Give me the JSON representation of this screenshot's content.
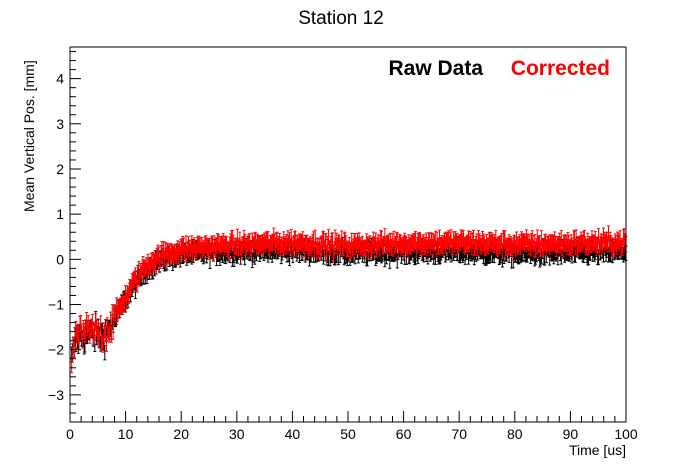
{
  "chart_data": {
    "type": "scatter",
    "title": "Station 12",
    "xlabel": "Time [us]",
    "ylabel": "Mean Vertical Pos. [mm]",
    "xlim": [
      0,
      100
    ],
    "ylim": [
      -3.6,
      4.7
    ],
    "x_ticks": [
      0,
      10,
      20,
      30,
      40,
      50,
      60,
      70,
      80,
      90,
      100
    ],
    "y_ticks": [
      -3,
      -2,
      -1,
      0,
      1,
      2,
      3,
      4
    ],
    "grid": false,
    "legend_placement": "top-right",
    "error_bars": true,
    "point_spacing_us": 0.149,
    "series": [
      {
        "name": "Raw Data",
        "color": "#000000",
        "error": 0.16,
        "trend": [
          [
            0,
            -2.5
          ],
          [
            0.5,
            -2.1
          ],
          [
            1,
            -1.8
          ],
          [
            2,
            -1.7
          ],
          [
            4,
            -1.65
          ],
          [
            6,
            -1.7
          ],
          [
            7,
            -1.55
          ],
          [
            8,
            -1.35
          ],
          [
            9,
            -1.1
          ],
          [
            10,
            -0.9
          ],
          [
            11,
            -0.7
          ],
          [
            12,
            -0.5
          ],
          [
            13,
            -0.35
          ],
          [
            14,
            -0.2
          ],
          [
            16,
            -0.05
          ],
          [
            18,
            0.05
          ],
          [
            20,
            0.1
          ],
          [
            25,
            0.15
          ],
          [
            30,
            0.17
          ],
          [
            40,
            0.2
          ],
          [
            50,
            0.13
          ],
          [
            60,
            0.16
          ],
          [
            70,
            0.17
          ],
          [
            80,
            0.12
          ],
          [
            90,
            0.14
          ],
          [
            100,
            0.17
          ]
        ]
      },
      {
        "name": "Corrected",
        "color": "#ff0000",
        "error": 0.17,
        "trend": [
          [
            0,
            -2.5
          ],
          [
            0.5,
            -2.0
          ],
          [
            1,
            -1.75
          ],
          [
            2,
            -1.65
          ],
          [
            4,
            -1.6
          ],
          [
            6,
            -1.65
          ],
          [
            7,
            -1.5
          ],
          [
            8,
            -1.3
          ],
          [
            9,
            -1.05
          ],
          [
            10,
            -0.85
          ],
          [
            11,
            -0.62
          ],
          [
            12,
            -0.42
          ],
          [
            13,
            -0.25
          ],
          [
            14,
            -0.1
          ],
          [
            16,
            0.05
          ],
          [
            18,
            0.15
          ],
          [
            20,
            0.22
          ],
          [
            25,
            0.28
          ],
          [
            30,
            0.32
          ],
          [
            40,
            0.37
          ],
          [
            50,
            0.3
          ],
          [
            60,
            0.36
          ],
          [
            70,
            0.37
          ],
          [
            80,
            0.33
          ],
          [
            90,
            0.35
          ],
          [
            100,
            0.38
          ]
        ]
      }
    ]
  }
}
